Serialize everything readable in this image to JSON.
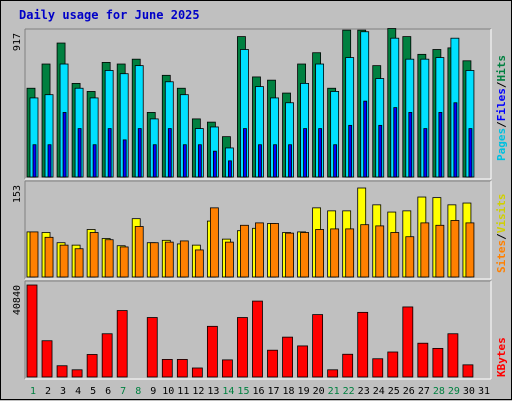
{
  "title": "Daily usage for June 2025",
  "colors": {
    "hits": "#008040",
    "files": "#00e0ff",
    "pages": "#0000ff",
    "visits": "#ffff00",
    "sites": "#ff8000",
    "kbytes": "#ff0000",
    "weekend_label": "#008040",
    "weekday_label": "#000000"
  },
  "chart_data": [
    {
      "type": "bar",
      "title": "Daily usage for June 2025",
      "ylabel_parts": [
        "Pages",
        "Files",
        "Hits"
      ],
      "max_label": "917",
      "ylim": [
        0,
        917
      ],
      "categories": [
        "1",
        "2",
        "3",
        "4",
        "5",
        "6",
        "7",
        "8",
        "9",
        "10",
        "11",
        "12",
        "13",
        "14",
        "15",
        "16",
        "17",
        "18",
        "19",
        "20",
        "21",
        "22",
        "23",
        "24",
        "25",
        "26",
        "27",
        "28",
        "29",
        "30",
        "31"
      ],
      "weekend_days": [
        1,
        7,
        8,
        14,
        15,
        21,
        22,
        28,
        29
      ],
      "series": [
        {
          "name": "Hits",
          "values": [
            550,
            700,
            830,
            580,
            530,
            710,
            700,
            730,
            400,
            630,
            550,
            360,
            340,
            250,
            870,
            620,
            600,
            520,
            700,
            770,
            550,
            910,
            910,
            690,
            920,
            870,
            760,
            790,
            800,
            720,
            0
          ]
        },
        {
          "name": "Files",
          "values": [
            490,
            510,
            700,
            550,
            490,
            660,
            640,
            690,
            360,
            590,
            510,
            300,
            310,
            180,
            790,
            560,
            490,
            460,
            580,
            700,
            530,
            740,
            900,
            610,
            860,
            730,
            730,
            740,
            860,
            660,
            0
          ]
        },
        {
          "name": "Pages",
          "values": [
            200,
            200,
            400,
            300,
            200,
            300,
            230,
            300,
            200,
            300,
            200,
            200,
            160,
            100,
            300,
            200,
            200,
            200,
            300,
            300,
            200,
            320,
            470,
            320,
            430,
            400,
            300,
            400,
            460,
            300,
            0
          ]
        }
      ]
    },
    {
      "type": "bar",
      "ylabel_parts": [
        "Sites",
        "Visits"
      ],
      "max_label": "153",
      "ylim": [
        0,
        153
      ],
      "categories": [
        "1",
        "2",
        "3",
        "4",
        "5",
        "6",
        "7",
        "8",
        "9",
        "10",
        "11",
        "12",
        "13",
        "14",
        "15",
        "16",
        "17",
        "18",
        "19",
        "20",
        "21",
        "22",
        "23",
        "24",
        "25",
        "26",
        "27",
        "28",
        "29",
        "30",
        "31"
      ],
      "series": [
        {
          "name": "Visits",
          "values": [
            75,
            74,
            57,
            53,
            79,
            64,
            52,
            97,
            57,
            61,
            55,
            53,
            93,
            63,
            77,
            81,
            89,
            74,
            75,
            115,
            110,
            110,
            148,
            120,
            108,
            110,
            133,
            132,
            120,
            123,
            0
          ]
        },
        {
          "name": "Sites",
          "values": [
            75,
            66,
            53,
            47,
            74,
            62,
            50,
            84,
            57,
            58,
            60,
            45,
            115,
            58,
            86,
            90,
            89,
            73,
            74,
            79,
            80,
            80,
            87,
            85,
            74,
            67,
            90,
            86,
            94,
            90,
            0
          ]
        }
      ]
    },
    {
      "type": "bar",
      "ylabel_parts": [
        "KBytes"
      ],
      "max_label": "40840",
      "ylim": [
        0,
        40840
      ],
      "categories": [
        "1",
        "2",
        "3",
        "4",
        "5",
        "6",
        "7",
        "8",
        "9",
        "10",
        "11",
        "12",
        "13",
        "14",
        "15",
        "16",
        "17",
        "18",
        "19",
        "20",
        "21",
        "22",
        "23",
        "24",
        "25",
        "26",
        "27",
        "28",
        "29",
        "30",
        "31"
      ],
      "series": [
        {
          "name": "KBytes",
          "values": [
            40840,
            16100,
            5000,
            3200,
            10000,
            19200,
            29500,
            0,
            26400,
            7800,
            7800,
            4000,
            22500,
            7600,
            26400,
            33700,
            11900,
            17700,
            13800,
            27700,
            3200,
            10100,
            28700,
            8100,
            11100,
            31100,
            15000,
            12700,
            19200,
            5400,
            0
          ]
        }
      ]
    }
  ]
}
